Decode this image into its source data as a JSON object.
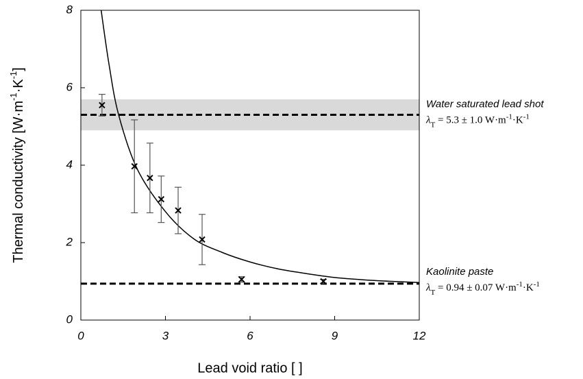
{
  "chart_data": {
    "type": "scatter",
    "x_label": "Lead void ratio [ ]",
    "y_label_parts": [
      "Thermal conductivity [W·m",
      "-1",
      "·K",
      "-1",
      "]"
    ],
    "xlim": [
      0,
      12
    ],
    "ylim": [
      0,
      8
    ],
    "xticks": [
      0,
      3,
      6,
      9,
      12
    ],
    "yticks": [
      0,
      2,
      4,
      6,
      8
    ],
    "series": [
      {
        "x": [
          0.75,
          1.9,
          2.45,
          2.85,
          3.45,
          4.3,
          5.7,
          8.6
        ],
        "values": [
          5.55,
          3.97,
          3.67,
          3.12,
          2.83,
          2.08,
          1.05,
          1.0
        ],
        "errors": [
          0.28,
          1.2,
          0.9,
          0.6,
          0.6,
          0.65,
          0.07,
          0.05
        ],
        "color": "#000000",
        "error_color": "#555555"
      }
    ],
    "fit": {
      "x": [
        0.72,
        1,
        1.34,
        2,
        3,
        4,
        5,
        6,
        7,
        8,
        9,
        10,
        11,
        12
      ],
      "values": [
        8,
        6.6,
        5.3,
        3.9,
        2.8,
        2.1,
        1.75,
        1.5,
        1.32,
        1.2,
        1.1,
        1.04,
        1.0,
        0.97
      ],
      "color": "#000000"
    },
    "band": {
      "low": 4.9,
      "high": 5.7,
      "color": "#d9d9d9"
    },
    "reference_lines": [
      {
        "value": 5.3,
        "title": "Water saturated lead shot",
        "formula_parts": [
          "λ",
          "T",
          " = 5.3 ± 1.0 W·m",
          "-1",
          "·K",
          "-1"
        ]
      },
      {
        "value": 0.94,
        "title": "Kaolinite paste",
        "formula_parts": [
          "λ",
          "T",
          " = 0.94 ± 0.07 W·m",
          "-1",
          "·K",
          "-1"
        ]
      }
    ]
  }
}
